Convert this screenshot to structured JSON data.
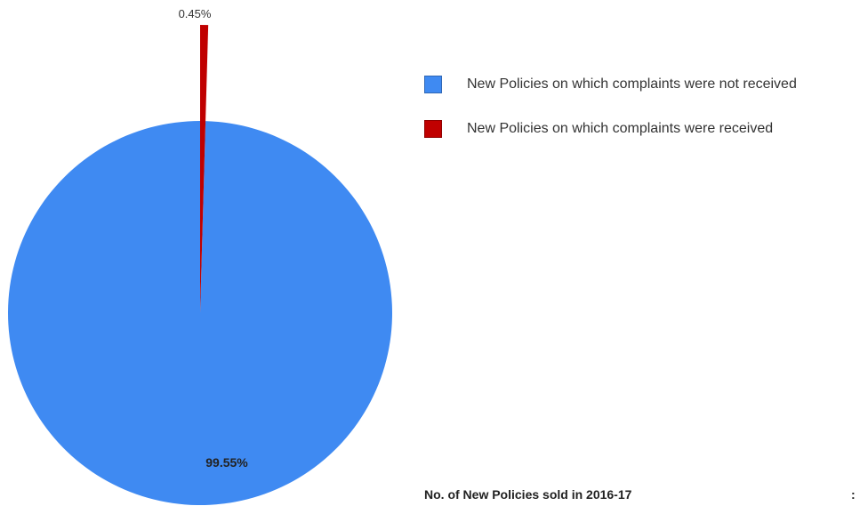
{
  "chart_data": {
    "type": "pie",
    "categories": [
      "New Policies on which complaints were not received",
      "New Policies on which complaints were received"
    ],
    "values": [
      99.55,
      0.45
    ],
    "data_labels": [
      "99.55%",
      "0.45%"
    ],
    "colors": [
      "#3f8af2",
      "#c00000"
    ],
    "legend_position": "right"
  },
  "footer": {
    "text": "No. of New Policies sold in 2016-17",
    "colon": ":"
  }
}
